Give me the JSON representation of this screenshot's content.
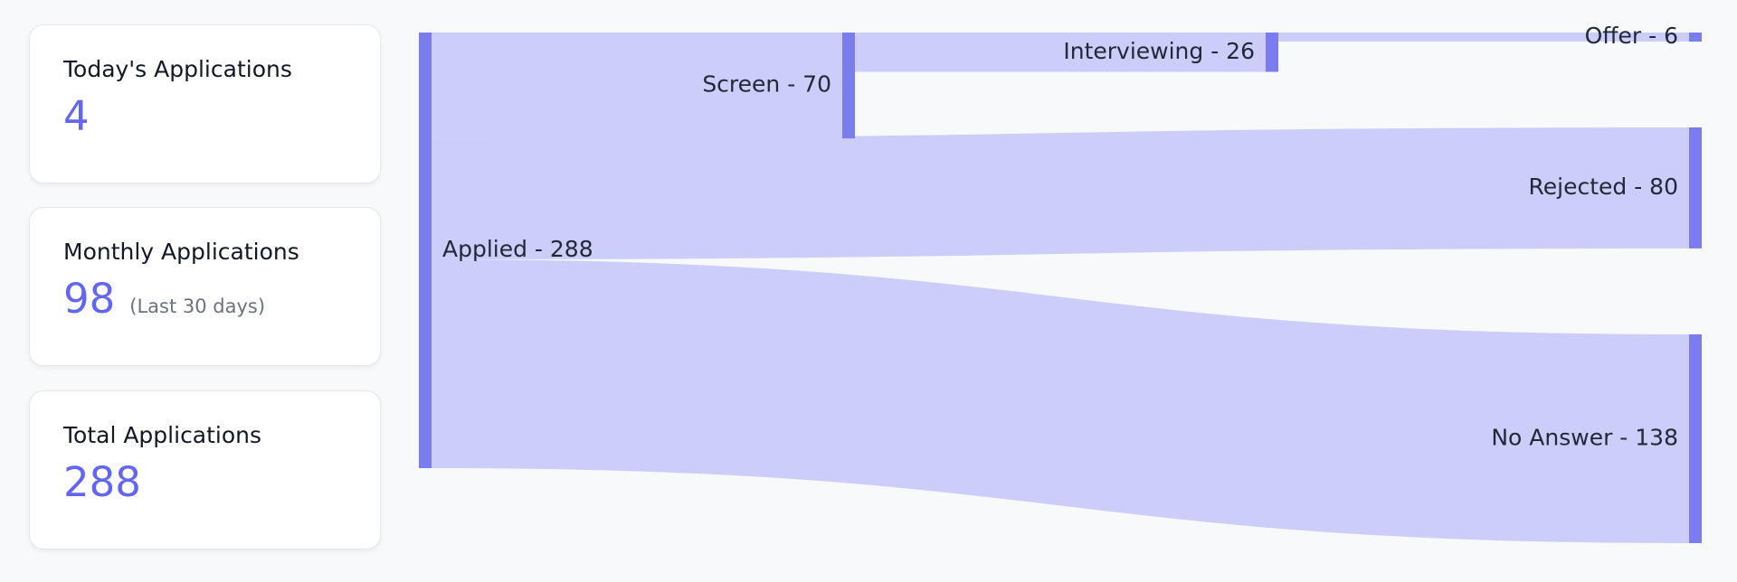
{
  "stats": {
    "today": {
      "title": "Today's Applications",
      "value": "4"
    },
    "monthly": {
      "title": "Monthly Applications",
      "value": "98",
      "note": "(Last 30 days)"
    },
    "total": {
      "title": "Total Applications",
      "value": "288"
    }
  },
  "chart_data": {
    "type": "sankey",
    "nodes": [
      {
        "id": "applied",
        "label": "Applied - 288",
        "value": 288
      },
      {
        "id": "screen",
        "label": "Screen - 70",
        "value": 70
      },
      {
        "id": "interviewing",
        "label": "Interviewing - 26",
        "value": 26
      },
      {
        "id": "offer",
        "label": "Offer - 6",
        "value": 6
      },
      {
        "id": "rejected",
        "label": "Rejected - 80",
        "value": 80
      },
      {
        "id": "no_answer",
        "label": "No Answer - 138",
        "value": 138
      }
    ],
    "links": [
      {
        "source": "applied",
        "target": "screen",
        "value": 70
      },
      {
        "source": "applied",
        "target": "rejected",
        "value": 80
      },
      {
        "source": "applied",
        "target": "no_answer",
        "value": 138
      },
      {
        "source": "screen",
        "target": "interviewing",
        "value": 26
      },
      {
        "source": "interviewing",
        "target": "offer",
        "value": 6
      }
    ],
    "colors": {
      "node": "#7b7cf0",
      "link": "#cccdf8"
    }
  }
}
